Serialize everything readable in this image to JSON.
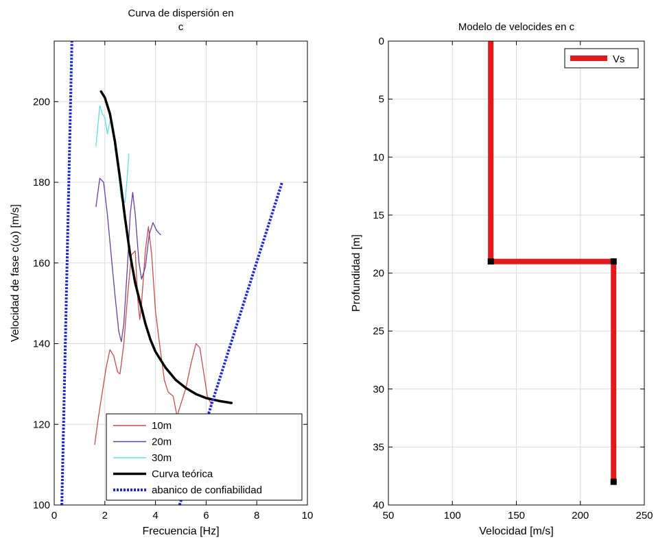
{
  "chart_data": [
    {
      "type": "line",
      "title_line1": "Curva de dispersión en",
      "title_line2": "c",
      "xlabel": "Frecuencia [Hz]",
      "ylabel": "Velocidad de fase c(ω) [m/s]",
      "xlim": [
        0,
        10
      ],
      "ylim": [
        100,
        215
      ],
      "xticks": [
        0,
        2,
        4,
        6,
        8,
        10
      ],
      "yticks": [
        100,
        120,
        140,
        160,
        180,
        200
      ],
      "grid": true,
      "legend_position": "bottom-right",
      "series": [
        {
          "name": "10m",
          "color": "#c44d4d",
          "style": "solid",
          "points": [
            [
              1.6,
              115
            ],
            [
              1.75,
              122
            ],
            [
              1.9,
              128
            ],
            [
              2.05,
              134
            ],
            [
              2.2,
              138.5
            ],
            [
              2.35,
              137
            ],
            [
              2.5,
              133
            ],
            [
              2.6,
              132.5
            ],
            [
              2.75,
              140
            ],
            [
              2.9,
              152
            ],
            [
              3.05,
              162
            ],
            [
              3.2,
              163
            ],
            [
              3.3,
              151
            ],
            [
              3.38,
              146
            ],
            [
              3.45,
              150
            ],
            [
              3.6,
              163
            ],
            [
              3.72,
              169
            ],
            [
              3.85,
              162
            ],
            [
              4.0,
              148
            ],
            [
              4.2,
              138
            ],
            [
              4.35,
              131
            ],
            [
              4.5,
              128
            ],
            [
              4.7,
              127
            ],
            [
              4.85,
              122
            ],
            [
              5.0,
              125
            ],
            [
              5.2,
              129
            ],
            [
              5.4,
              135
            ],
            [
              5.6,
              140
            ],
            [
              5.75,
              139
            ],
            [
              5.9,
              133
            ],
            [
              6.05,
              127
            ],
            [
              6.2,
              125
            ]
          ]
        },
        {
          "name": "20m",
          "color": "#6a3d9a",
          "style": "solid",
          "points": [
            [
              1.65,
              174
            ],
            [
              1.8,
              181
            ],
            [
              1.95,
              180
            ],
            [
              2.1,
              172
            ],
            [
              2.25,
              162
            ],
            [
              2.4,
              152
            ],
            [
              2.55,
              143
            ],
            [
              2.65,
              140.5
            ],
            [
              2.75,
              145
            ],
            [
              2.9,
              160
            ],
            [
              3.0,
              172
            ],
            [
              3.1,
              177.5
            ],
            [
              3.2,
              172
            ],
            [
              3.35,
              160
            ],
            [
              3.45,
              156
            ],
            [
              3.6,
              159
            ],
            [
              3.75,
              167
            ],
            [
              3.9,
              170
            ],
            [
              4.05,
              168
            ],
            [
              4.2,
              167
            ]
          ]
        },
        {
          "name": "30m",
          "color": "#5fdfdf",
          "style": "solid",
          "points": [
            [
              1.65,
              189
            ],
            [
              1.8,
              199
            ],
            [
              1.9,
              197
            ],
            [
              2.0,
              196
            ],
            [
              2.1,
              192
            ],
            [
              2.2,
              195
            ],
            [
              2.3,
              195
            ],
            [
              2.4,
              188
            ],
            [
              2.5,
              184
            ],
            [
              2.65,
              176
            ],
            [
              2.8,
              175
            ],
            [
              2.88,
              181
            ],
            [
              2.95,
              187
            ]
          ]
        },
        {
          "name": "Curva teórica",
          "color": "#000000",
          "style": "thick",
          "points": [
            [
              1.85,
              202.5
            ],
            [
              2.0,
              201
            ],
            [
              2.2,
              197
            ],
            [
              2.4,
              190
            ],
            [
              2.6,
              181
            ],
            [
              2.8,
              171
            ],
            [
              3.0,
              162
            ],
            [
              3.2,
              155
            ],
            [
              3.4,
              150
            ],
            [
              3.6,
              145
            ],
            [
              3.8,
              141
            ],
            [
              4.0,
              138
            ],
            [
              4.4,
              134
            ],
            [
              4.8,
              131
            ],
            [
              5.2,
              129
            ],
            [
              5.6,
              127.5
            ],
            [
              6.0,
              126.5
            ],
            [
              6.5,
              125.8
            ],
            [
              7.0,
              125.3
            ]
          ]
        },
        {
          "name": "abanico de confiabilidad",
          "color": "#1f2bd6",
          "style": "dotted",
          "segments": [
            [
              [
                0.3,
                100
              ],
              [
                0.7,
                215
              ]
            ],
            [
              [
                4.95,
                100
              ],
              [
                9.0,
                180
              ]
            ]
          ]
        }
      ]
    },
    {
      "type": "line",
      "title": "Modelo de velocides en c",
      "xlabel": "Velocidad [m/s]",
      "ylabel": "Profundidad [m]",
      "xlim": [
        50,
        250
      ],
      "ylim": [
        0,
        40
      ],
      "y_reversed": true,
      "xticks": [
        50,
        100,
        150,
        200,
        250
      ],
      "yticks": [
        0,
        5,
        10,
        15,
        20,
        25,
        30,
        35,
        40
      ],
      "grid": true,
      "legend_position": "top-right",
      "series": [
        {
          "name": "Vs",
          "color": "#e31a1c",
          "points": [
            [
              130,
              0
            ],
            [
              130,
              19
            ],
            [
              226,
              19
            ],
            [
              226,
              38
            ]
          ],
          "markers": [
            [
              130,
              19
            ],
            [
              226,
              19
            ],
            [
              226,
              38
            ]
          ]
        }
      ]
    }
  ]
}
